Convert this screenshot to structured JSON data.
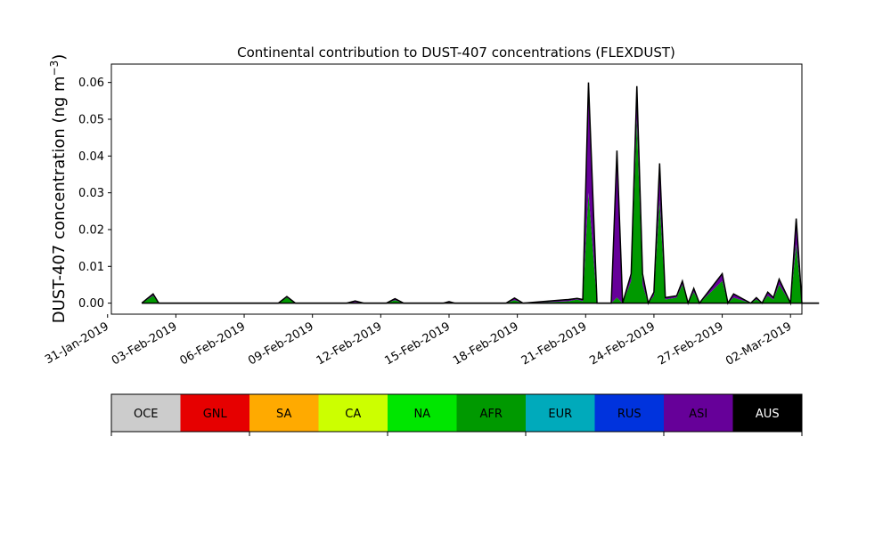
{
  "chart_data": {
    "type": "area",
    "title": "Continental contribution to DUST-407 concentrations (FLEXDUST)",
    "ylabel": "DUST-407 concentration (ng m",
    "ylabel_unit_exponent": "−3",
    "ylabel_close": ")",
    "xlabel": "",
    "ylim": [
      -0.003,
      0.065
    ],
    "xlim_days": [
      "2019-01-31T04:00",
      "2019-03-02T12:00"
    ],
    "y_ticks": [
      "0.00",
      "0.01",
      "0.02",
      "0.03",
      "0.04",
      "0.05",
      "0.06"
    ],
    "x_ticks": [
      "31-Jan-2019",
      "03-Feb-2019",
      "06-Feb-2019",
      "09-Feb-2019",
      "12-Feb-2019",
      "15-Feb-2019",
      "18-Feb-2019",
      "21-Feb-2019",
      "24-Feb-2019",
      "27-Feb-2019",
      "02-Mar-2019"
    ],
    "grid": false,
    "stacked": true,
    "x": [
      "2019-02-01T12:00",
      "2019-02-02T00:00",
      "2019-02-02T06:00",
      "2019-02-02T12:00",
      "2019-02-03T00:00",
      "2019-02-07T12:00",
      "2019-02-07T21:00",
      "2019-02-08T06:00",
      "2019-02-10T12:00",
      "2019-02-10T21:00",
      "2019-02-11T06:00",
      "2019-02-12T06:00",
      "2019-02-12T15:00",
      "2019-02-13T00:00",
      "2019-02-14T18:00",
      "2019-02-15T00:00",
      "2019-02-15T06:00",
      "2019-02-17T12:00",
      "2019-02-17T21:00",
      "2019-02-18T06:00",
      "2019-02-20T06:00",
      "2019-02-20T15:00",
      "2019-02-20T21:00",
      "2019-02-21T03:00",
      "2019-02-21T12:00",
      "2019-02-22T03:00",
      "2019-02-22T09:00",
      "2019-02-22T15:00",
      "2019-02-23T00:00",
      "2019-02-23T06:00",
      "2019-02-23T12:00",
      "2019-02-23T18:00",
      "2019-02-24T00:00",
      "2019-02-24T06:00",
      "2019-02-24T12:00",
      "2019-02-25T00:00",
      "2019-02-25T06:00",
      "2019-02-25T12:00",
      "2019-02-25T18:00",
      "2019-02-26T00:00",
      "2019-02-27T00:00",
      "2019-02-27T06:00",
      "2019-02-27T12:00",
      "2019-02-28T06:00",
      "2019-02-28T12:00",
      "2019-02-28T18:00",
      "2019-03-01T00:00",
      "2019-03-01T06:00",
      "2019-03-01T12:00",
      "2019-03-02T00:00",
      "2019-03-02T06:00",
      "2019-03-02T12:00",
      "2019-03-02T18:00",
      "2019-03-03T06:00"
    ],
    "series": [
      {
        "name": "AFR",
        "color": "#009900",
        "values": [
          0,
          0.002,
          0,
          0,
          0,
          0,
          0.0015,
          0,
          0,
          0.0002,
          0,
          0,
          0.0008,
          0,
          0,
          0.0002,
          0,
          0,
          0.0008,
          0,
          0.0005,
          0.001,
          0.0005,
          0.03,
          0,
          0,
          0.0015,
          0,
          0.006,
          0.05,
          0.005,
          0,
          0.002,
          0.028,
          0.001,
          0.0015,
          0.005,
          0,
          0.003,
          0,
          0.006,
          0,
          0.0015,
          0,
          0.001,
          0,
          0.002,
          0.001,
          0.005,
          0,
          0.016,
          0,
          0,
          0
        ]
      },
      {
        "name": "ASI",
        "color": "#660099",
        "values": [
          0,
          0.0005,
          0,
          0,
          0,
          0,
          0.0003,
          0,
          0,
          0.0004,
          0,
          0,
          0.0004,
          0,
          0,
          0.0002,
          0,
          0,
          0.0006,
          0,
          0.0005,
          0.0003,
          0.0005,
          0.03,
          0,
          0,
          0.04,
          0,
          0.002,
          0.009,
          0.003,
          0,
          0.001,
          0.01,
          0.0005,
          0.0005,
          0.001,
          0,
          0.001,
          0,
          0.002,
          0,
          0.001,
          0,
          0.0005,
          0,
          0.001,
          0.0005,
          0.0015,
          0,
          0.007,
          0,
          0,
          0
        ]
      }
    ],
    "colorbar": {
      "labels": [
        "OCE",
        "GNL",
        "SA",
        "CA",
        "NA",
        "AFR",
        "EUR",
        "RUS",
        "ASI",
        "AUS"
      ],
      "colors": [
        "#cccccc",
        "#e60000",
        "#ffaa00",
        "#ccff00",
        "#00e600",
        "#009900",
        "#00aabb",
        "#0033dd",
        "#660099",
        "#000000"
      ],
      "text_colors": [
        "#000000",
        "#000000",
        "#000000",
        "#000000",
        "#000000",
        "#000000",
        "#000000",
        "#000000",
        "#000000",
        "#ffffff"
      ]
    }
  }
}
